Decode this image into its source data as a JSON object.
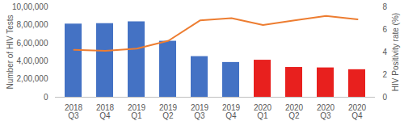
{
  "chart_data": {
    "type": "bar",
    "categories": [
      "2018 Q3",
      "2018 Q4",
      "2019 Q1",
      "2019 Q2",
      "2019 Q3",
      "2019 Q4",
      "2020 Q1",
      "2020 Q2",
      "2020 Q3",
      "2020 Q4"
    ],
    "series": [
      {
        "type": "bar",
        "colors": [
          "#4472c4",
          "#4472c4",
          "#4472c4",
          "#4472c4",
          "#4472c4",
          "#4472c4",
          "#e8201e",
          "#e8201e",
          "#e8201e",
          "#e8201e"
        ],
        "values": [
          810000,
          815000,
          835000,
          620000,
          450000,
          385000,
          410000,
          330000,
          325000,
          305000
        ]
      },
      {
        "type": "line",
        "axis": "y2",
        "color": "#ed7d31",
        "values": [
          4.2,
          4.1,
          4.3,
          5.0,
          6.8,
          7.0,
          6.4,
          6.8,
          7.2,
          6.9
        ]
      }
    ],
    "y_label": "Number of HIV Tests",
    "y2_label": "HIV Positivity rate (%)",
    "ylim": [
      0,
      1000000
    ],
    "yticks": [
      0,
      {
        "value": 200000,
        "label": "2,00,000"
      },
      {
        "value": 400000,
        "label": "4,00,000"
      },
      {
        "value": 600000,
        "label": "6,00,000"
      },
      {
        "value": 800000,
        "label": "8,00,000"
      },
      {
        "value": 1000000,
        "label": "10,00,000"
      }
    ],
    "y2lim": [
      0,
      8
    ],
    "y2ticks": [
      0,
      2,
      4,
      6,
      8
    ]
  }
}
